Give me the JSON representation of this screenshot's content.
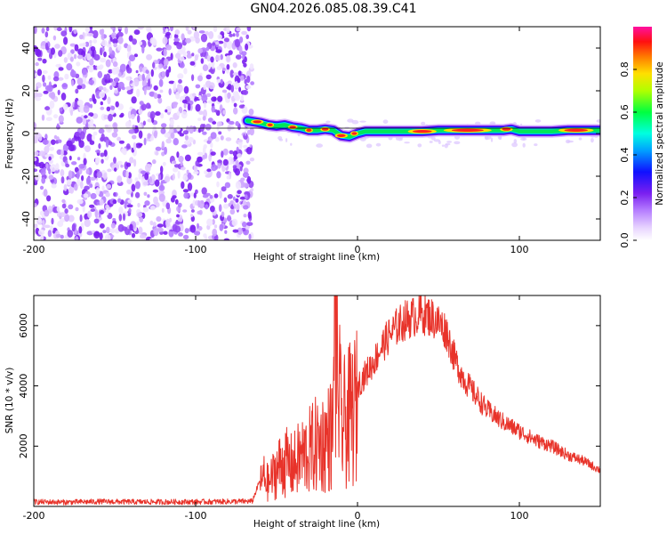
{
  "title": "GN04.2026.085.08.39.C41",
  "chart_data": [
    {
      "type": "heatmap",
      "xlabel": "Height of straight line (km)",
      "ylabel": "Frequency (Hz)",
      "xlim": [
        -200,
        150
      ],
      "ylim": [
        -50,
        50
      ],
      "x_ticks": [
        -200,
        -100,
        0,
        100
      ],
      "y_ticks": [
        -40,
        -20,
        0,
        20,
        40
      ],
      "noise_region_x": [
        -200,
        -65
      ],
      "ridge": {
        "x": [
          -68,
          -60,
          -55,
          -50,
          -45,
          -40,
          -35,
          -30,
          -25,
          -20,
          -15,
          -10,
          -5,
          0,
          5,
          10,
          20,
          30,
          40,
          50,
          60,
          70,
          80,
          90,
          95,
          100,
          110,
          120,
          130,
          140,
          150
        ],
        "y": [
          6,
          5,
          4,
          3.5,
          4,
          3,
          2.5,
          1.5,
          1.5,
          2,
          1.5,
          -1,
          -1.5,
          0,
          1,
          1,
          1,
          1,
          1,
          1.5,
          1.5,
          1.5,
          1.5,
          1.5,
          2,
          1,
          1,
          1,
          1.5,
          1.5,
          1.5
        ]
      },
      "colorbar": {
        "label": "Normalized spectral amplitude",
        "range": [
          0.0,
          1.0
        ],
        "ticks": [
          0.0,
          0.2,
          0.4,
          0.6,
          0.8
        ]
      },
      "colors": [
        "#ffffff",
        "#d8b6ff",
        "#7a1ff0",
        "#0000ff",
        "#00d8ff",
        "#00ff40",
        "#ffff00",
        "#ff7a00",
        "#ff0000"
      ]
    },
    {
      "type": "line",
      "xlabel": "Height of straight line (km)",
      "ylabel": "SNR (10 * v/v)",
      "xlim": [
        -200,
        150
      ],
      "ylim": [
        0,
        7000
      ],
      "x_ticks": [
        -200,
        -100,
        0,
        100
      ],
      "y_ticks": [
        2000,
        4000,
        6000
      ],
      "series": [
        {
          "color": "#e8332a",
          "x": [
            -200,
            -180,
            -160,
            -140,
            -120,
            -100,
            -80,
            -65,
            -58,
            -55,
            -50,
            -45,
            -40,
            -35,
            -30,
            -25,
            -20,
            -15,
            -14,
            -10,
            -5,
            0,
            5,
            10,
            15,
            20,
            25,
            30,
            35,
            40,
            45,
            50,
            55,
            60,
            65,
            70,
            80,
            90,
            100,
            110,
            120,
            130,
            140,
            150
          ],
          "y": [
            150,
            140,
            160,
            150,
            150,
            150,
            160,
            170,
            1200,
            900,
            1500,
            1800,
            1600,
            2000,
            2200,
            2500,
            2600,
            3000,
            7000,
            3200,
            3600,
            4000,
            4400,
            4800,
            5300,
            5700,
            6000,
            6200,
            6300,
            6400,
            6300,
            6100,
            5800,
            4900,
            4300,
            3900,
            3200,
            2800,
            2500,
            2200,
            2000,
            1700,
            1500,
            1200
          ]
        }
      ]
    }
  ]
}
